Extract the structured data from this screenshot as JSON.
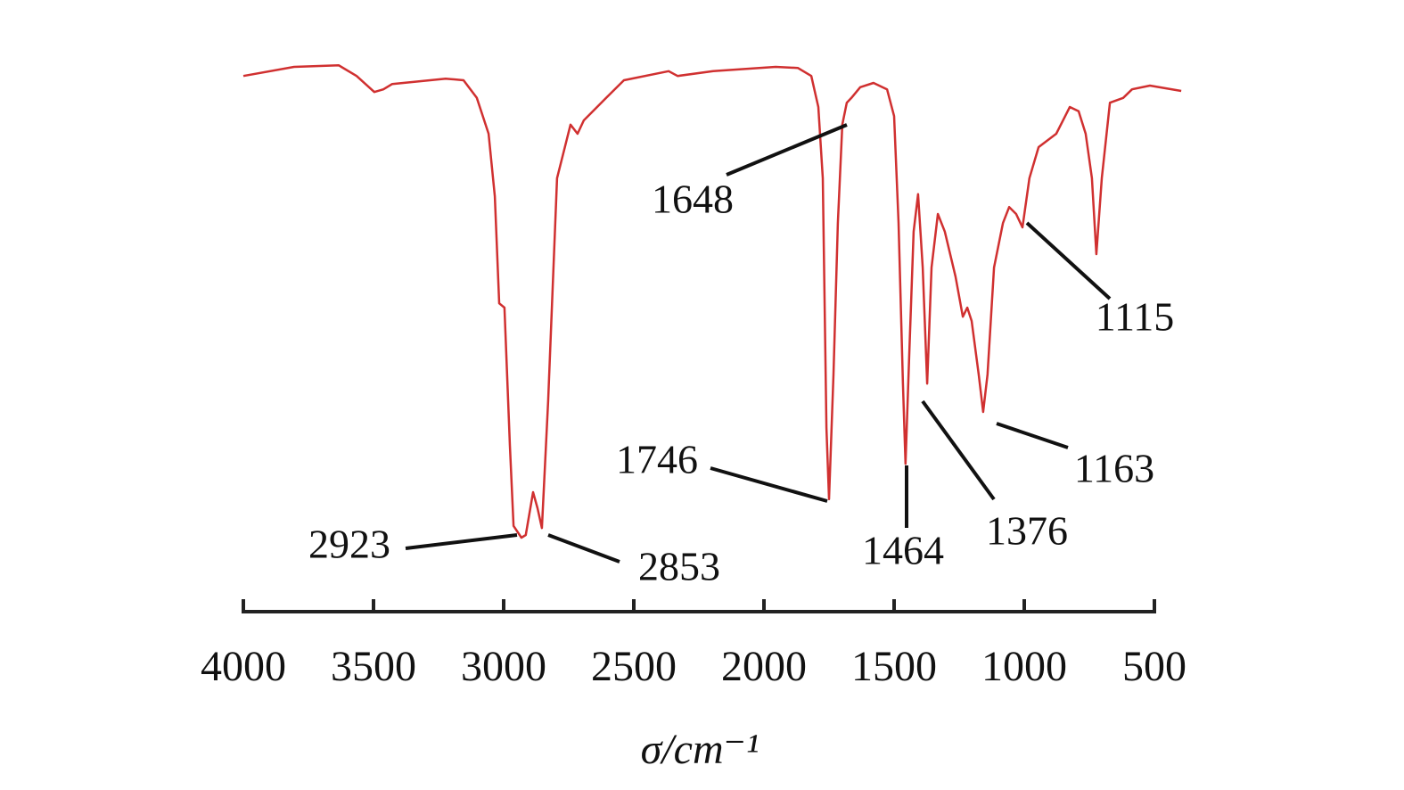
{
  "chart_data": {
    "type": "line",
    "xlabel": "σ/cm⁻¹",
    "xlim": [
      4000,
      500
    ],
    "xticks": [
      4000,
      3500,
      3000,
      2500,
      2000,
      1500,
      1000,
      500
    ],
    "ylim": [
      0,
      100
    ],
    "color": "#d03030",
    "x": [
      4000,
      3805,
      3634,
      3565,
      3497,
      3462,
      3428,
      3223,
      3154,
      3103,
      3058,
      3034,
      3017,
      2997,
      2976,
      2962,
      2932,
      2915,
      2887,
      2870,
      2853,
      2829,
      2795,
      2743,
      2716,
      2692,
      2606,
      2538,
      2366,
      2332,
      2195,
      1955,
      1870,
      1818,
      1791,
      1774,
      1760,
      1750,
      1733,
      1716,
      1699,
      1682,
      1664,
      1630,
      1579,
      1527,
      1500,
      1483,
      1466,
      1456,
      1442,
      1425,
      1408,
      1390,
      1373,
      1356,
      1332,
      1305,
      1264,
      1236,
      1219,
      1202,
      1175,
      1158,
      1141,
      1116,
      1082,
      1058,
      1031,
      1007,
      980,
      945,
      877,
      825,
      791,
      764,
      740,
      723,
      702,
      671,
      620,
      586,
      517,
      397
    ],
    "values": [
      95.8,
      97.5,
      97.8,
      95.8,
      92.8,
      93.3,
      94.3,
      95.3,
      95,
      91.7,
      85,
      73.3,
      53.3,
      52.5,
      26.7,
      11.7,
      9.5,
      10,
      18,
      15,
      11.3,
      35,
      76.7,
      86.7,
      85,
      87.5,
      91.7,
      95,
      96.7,
      95.8,
      96.7,
      97.5,
      97.3,
      95.8,
      90,
      76.7,
      30,
      16.7,
      40,
      68.3,
      86.7,
      90.8,
      91.7,
      93.7,
      94.5,
      93.3,
      88.3,
      68.3,
      38.3,
      23.3,
      43.3,
      66.7,
      73.7,
      60,
      38.3,
      60,
      70,
      66.7,
      58.3,
      50.8,
      52.5,
      50,
      40,
      33,
      40,
      60,
      68.3,
      71.3,
      70,
      67.5,
      76.7,
      82.5,
      85,
      90,
      89.2,
      85,
      76.7,
      62.5,
      76.7,
      90.8,
      91.7,
      93.3,
      94,
      93
    ],
    "annotations": [
      "2923",
      "2853",
      "1746",
      "1648",
      "1464",
      "1376",
      "1163",
      "1115"
    ]
  }
}
